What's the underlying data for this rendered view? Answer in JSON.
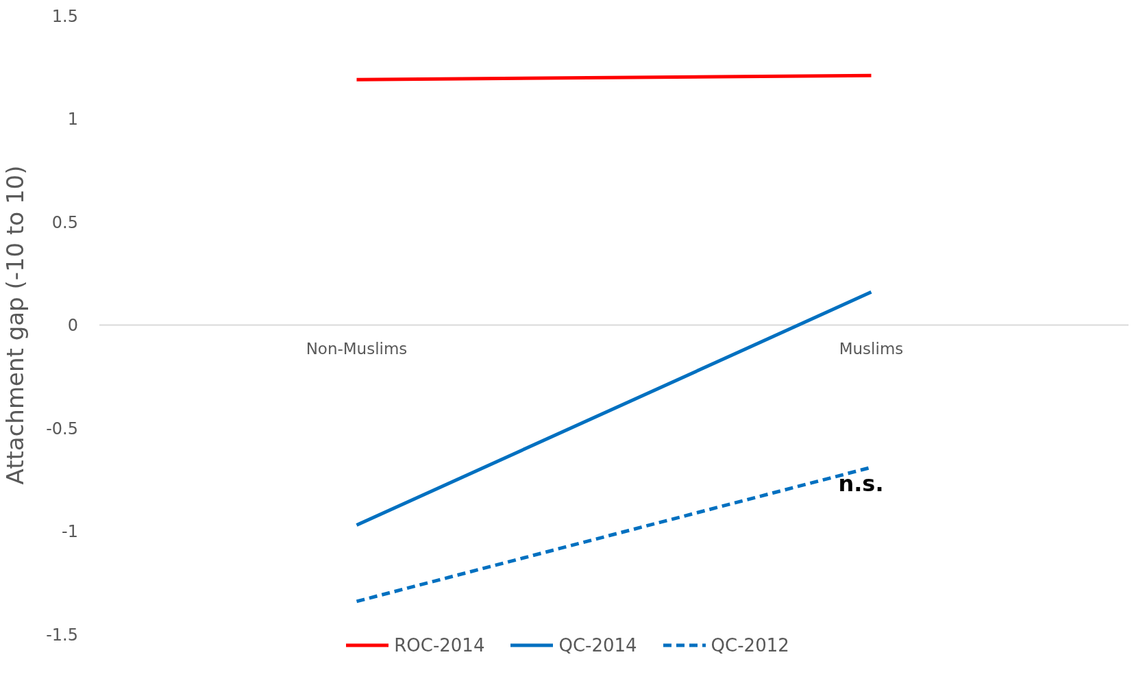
{
  "chart_data": {
    "type": "line",
    "ylabel": "Attachment gap (-10  to 10)",
    "categories": [
      "Non-Muslims",
      "Muslims"
    ],
    "series": [
      {
        "name": "ROC-2014",
        "color": "#ff0000",
        "values": [
          1.19,
          1.21
        ],
        "line_style": "solid"
      },
      {
        "name": "QC-2014",
        "color": "#0070c0",
        "values": [
          -0.97,
          0.16
        ],
        "line_style": "solid"
      },
      {
        "name": "QC-2012",
        "color": "#0070c0",
        "values": [
          -1.34,
          -0.69
        ],
        "line_style": "dashed"
      }
    ],
    "annotations": [
      {
        "text": "n.s.",
        "x": "Muslims",
        "y": -0.69
      }
    ],
    "ylim": [
      -1.5,
      1.5
    ],
    "yticks": [
      -1.5,
      -1,
      -0.5,
      0,
      0.5,
      1,
      1.5
    ],
    "grid": false,
    "legend": "bottom",
    "marker": "none"
  }
}
